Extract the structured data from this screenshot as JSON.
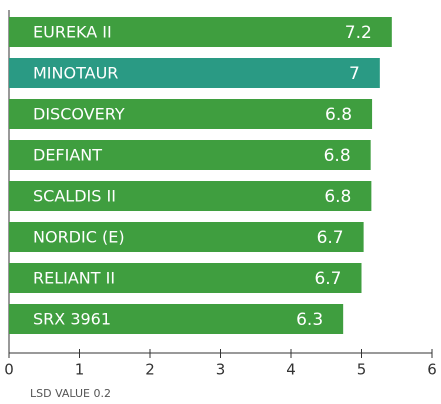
{
  "chart_data": {
    "type": "bar",
    "orientation": "horizontal",
    "categories": [
      "EUREKA II",
      "MINOTAUR",
      "DISCOVERY",
      "DEFIANT",
      "SCALDIS II",
      "NORDIC (E)",
      "RELIANT II",
      "SRX 3961"
    ],
    "values": [
      5.43,
      5.26,
      5.15,
      5.13,
      5.14,
      5.03,
      5.0,
      4.74
    ],
    "scores": [
      7.2,
      7.0,
      6.8,
      6.8,
      6.8,
      6.7,
      6.7,
      6.3
    ],
    "colors": [
      "#3f9e3f",
      "#2a9a84",
      "#3f9e3f",
      "#3f9e3f",
      "#3f9e3f",
      "#3f9e3f",
      "#3f9e3f",
      "#3f9e3f"
    ],
    "xlim": [
      0,
      6
    ],
    "xticks": [
      0,
      1,
      2,
      3,
      4,
      5,
      6
    ],
    "footnote": "LSD VALUE 0.2"
  }
}
